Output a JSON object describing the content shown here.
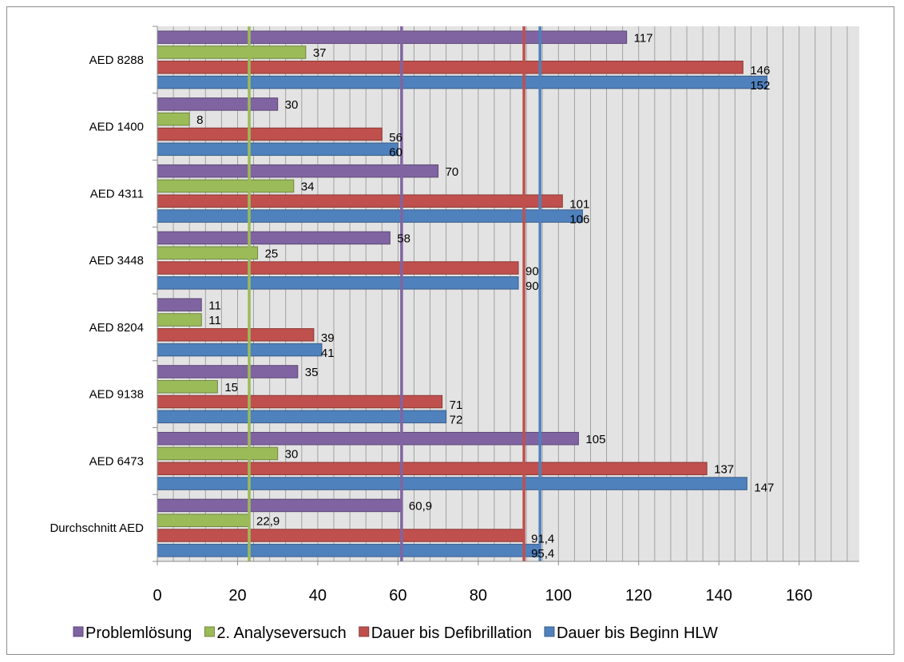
{
  "chart_data": {
    "type": "bar",
    "orientation": "horizontal",
    "title": "",
    "xlabel": "",
    "ylabel": "",
    "xlim": [
      0,
      175
    ],
    "x_ticks": [
      0,
      20,
      40,
      60,
      80,
      100,
      120,
      140,
      160
    ],
    "x_tick_labels": [
      "0",
      "20",
      "40",
      "60",
      "80",
      "100",
      "120",
      "140",
      "160"
    ],
    "categories": [
      "AED 8288",
      "AED 1400",
      "AED 4311",
      "AED 3448",
      "AED 8204",
      "AED 9138",
      "AED 6473",
      "Durchschnitt AED"
    ],
    "series": [
      {
        "name": "Problemlösung",
        "color": "#8064a2",
        "values": [
          117,
          30,
          70,
          58,
          11,
          35,
          105,
          60.9
        ],
        "labels": [
          "117",
          "30",
          "70",
          "58",
          "11",
          "35",
          "105",
          "60,9"
        ]
      },
      {
        "name": "2. Analyseversuch",
        "color": "#9bbb59",
        "values": [
          37,
          8,
          34,
          25,
          11,
          15,
          30,
          22.9
        ],
        "labels": [
          "37",
          "8",
          "34",
          "25",
          "11",
          "15",
          "30",
          "22,9"
        ]
      },
      {
        "name": "Dauer bis Defibrillation",
        "color": "#c0504d",
        "values": [
          146,
          56,
          101,
          90,
          39,
          71,
          137,
          91.4
        ],
        "labels": [
          "146",
          "56",
          "101",
          "90",
          "39",
          "71",
          "137",
          "91,4"
        ]
      },
      {
        "name": "Dauer bis Beginn HLW",
        "color": "#4f81bd",
        "values": [
          152,
          60,
          106,
          90,
          41,
          72,
          147,
          95.4
        ],
        "labels": [
          "152",
          "60",
          "106",
          "90",
          "41",
          "72",
          "147",
          "95,4"
        ]
      }
    ],
    "reference_lines": [
      {
        "series": "2. Analyseversuch",
        "value": 22.9,
        "color": "#9bbb59"
      },
      {
        "series": "Problemlösung",
        "value": 60.9,
        "color": "#8064a2"
      },
      {
        "series": "Dauer bis Defibrillation",
        "value": 91.4,
        "color": "#c0504d"
      },
      {
        "series": "Dauer bis Beginn HLW",
        "value": 95.4,
        "color": "#4f81bd"
      }
    ],
    "grid": true,
    "legend_position": "bottom"
  }
}
